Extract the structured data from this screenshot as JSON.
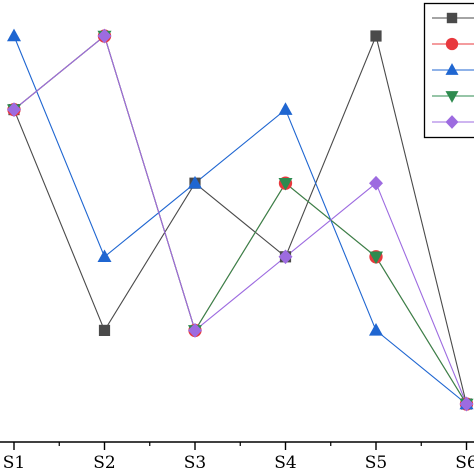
{
  "chart_data": {
    "type": "line",
    "categories": [
      "S1",
      "S2",
      "S3",
      "S4",
      "S5",
      "S6"
    ],
    "ylim": [
      0,
      5.5
    ],
    "grid": false,
    "legend": {
      "placement": "top-right",
      "shows_names": false
    },
    "series": [
      {
        "marker": "square",
        "color": "#4a4a4a",
        "values": [
          4,
          1,
          3,
          2,
          5,
          0
        ]
      },
      {
        "marker": "circle",
        "color": "#e8383d",
        "values": [
          4,
          5,
          1,
          3,
          2,
          0
        ]
      },
      {
        "marker": "triangle-up",
        "color": "#1f66d1",
        "values": [
          5,
          2,
          3,
          4,
          1,
          0
        ]
      },
      {
        "marker": "triangle-down",
        "color": "#2e8b4f",
        "values": [
          4,
          5,
          1,
          3,
          2,
          0
        ]
      },
      {
        "marker": "diamond",
        "color": "#9d6be0",
        "values": [
          4,
          5,
          1,
          2,
          3,
          0
        ]
      }
    ]
  }
}
